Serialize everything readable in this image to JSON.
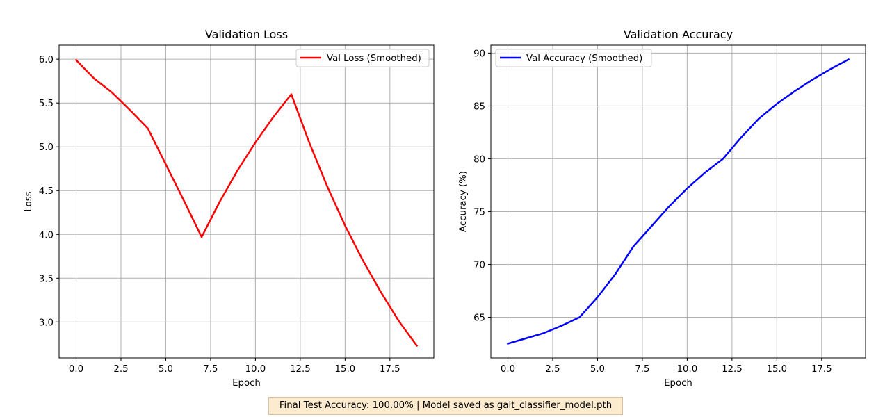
{
  "chart_data": [
    {
      "type": "line",
      "title": "Validation Loss",
      "xlabel": "Epoch",
      "ylabel": "Loss",
      "xlim": [
        -0.95,
        19.95
      ],
      "ylim": [
        2.59,
        6.16
      ],
      "xticks": [
        0.0,
        2.5,
        5.0,
        7.5,
        10.0,
        12.5,
        15.0,
        17.5
      ],
      "xtick_labels": [
        "0.0",
        "2.5",
        "5.0",
        "7.5",
        "10.0",
        "12.5",
        "15.0",
        "17.5"
      ],
      "yticks": [
        3.0,
        3.5,
        4.0,
        4.5,
        5.0,
        5.5,
        6.0
      ],
      "ytick_labels": [
        "3.0",
        "3.5",
        "4.0",
        "4.5",
        "5.0",
        "5.5",
        "6.0"
      ],
      "grid": true,
      "legend_position": "upper right",
      "series": [
        {
          "name": "Val Loss (Smoothed)",
          "color": "#ff0000",
          "x": [
            0,
            1,
            2,
            3,
            4,
            5,
            6,
            7,
            8,
            9,
            10,
            11,
            12,
            13,
            14,
            15,
            16,
            17,
            18,
            19
          ],
          "values": [
            5.99,
            5.78,
            5.62,
            5.42,
            5.21,
            4.8,
            4.39,
            3.97,
            4.37,
            4.73,
            5.05,
            5.34,
            5.6,
            5.05,
            4.55,
            4.1,
            3.7,
            3.34,
            3.01,
            2.73
          ]
        }
      ]
    },
    {
      "type": "line",
      "title": "Validation Accuracy",
      "xlabel": "Epoch",
      "ylabel": "Accuracy (%)",
      "xlim": [
        -0.95,
        19.95
      ],
      "ylim": [
        61.15,
        90.75
      ],
      "xticks": [
        0.0,
        2.5,
        5.0,
        7.5,
        10.0,
        12.5,
        15.0,
        17.5
      ],
      "xtick_labels": [
        "0.0",
        "2.5",
        "5.0",
        "7.5",
        "10.0",
        "12.5",
        "15.0",
        "17.5"
      ],
      "yticks": [
        65,
        70,
        75,
        80,
        85,
        90
      ],
      "ytick_labels": [
        "65",
        "70",
        "75",
        "80",
        "85",
        "90"
      ],
      "grid": true,
      "legend_position": "upper left",
      "series": [
        {
          "name": "Val Accuracy (Smoothed)",
          "color": "#0000ff",
          "x": [
            0,
            1,
            2,
            3,
            4,
            5,
            6,
            7,
            8,
            9,
            10,
            11,
            12,
            13,
            14,
            15,
            16,
            17,
            18,
            19
          ],
          "values": [
            62.5,
            63.0,
            63.5,
            64.2,
            65.0,
            66.9,
            69.1,
            71.7,
            73.6,
            75.5,
            77.2,
            78.7,
            80.0,
            82.0,
            83.8,
            85.2,
            86.4,
            87.5,
            88.5,
            89.4
          ]
        }
      ]
    }
  ],
  "footer": {
    "text": "Final Test Accuracy: 100.00% | Model saved as gait_classifier_model.pth"
  }
}
